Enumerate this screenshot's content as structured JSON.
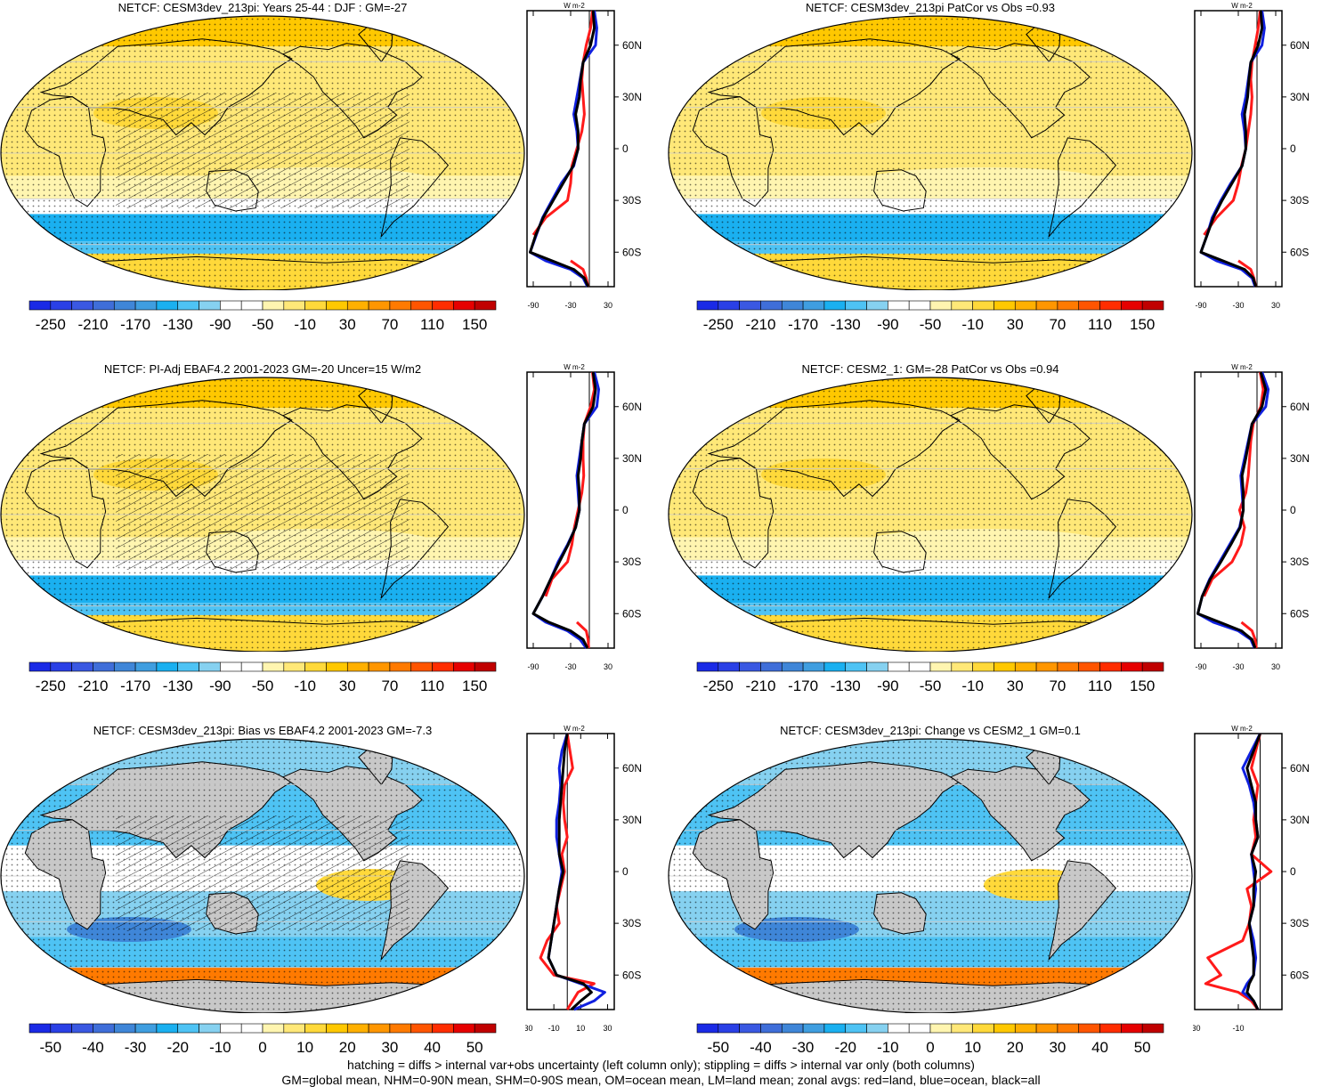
{
  "footnote": {
    "line1": "hatching = diffs > internal var+obs uncertainty (left column only); stippling = diffs > internal var only (both columns)",
    "line2": "GM=global mean, NHM=0-90N mean, SHM=0-90S mean, OM=ocean mean, LM=land mean; zonal avgs: red=land, blue=ocean, black=all"
  },
  "colors": {
    "land": "#ff1a1a",
    "ocean": "#1020e0",
    "all": "#000000",
    "missing": "#c8c8c8",
    "coast": "#000000",
    "cbar_abs": [
      "#1a2ae6",
      "#2a40e6",
      "#3a58e2",
      "#3f6ed9",
      "#3f86d8",
      "#3f9ee0",
      "#1ab0f0",
      "#4ec3f4",
      "#86d1f0",
      "#ffffff",
      "#ffffff",
      "#fff5b0",
      "#ffe878",
      "#ffd93a",
      "#ffc800",
      "#ffb000",
      "#ff9600",
      "#ff7a00",
      "#ff5500",
      "#ff2d00",
      "#e60000",
      "#c00000"
    ],
    "cbar_diff": [
      "#1a2ae6",
      "#2a40e6",
      "#3a58e2",
      "#3f6ed9",
      "#3f86d8",
      "#3f9ee0",
      "#1ab0f0",
      "#4ec3f4",
      "#86d1f0",
      "#ffffff",
      "#ffffff",
      "#fff5b0",
      "#ffe878",
      "#ffd93a",
      "#ffc800",
      "#ffb000",
      "#ff9600",
      "#ff7a00",
      "#ff5500",
      "#ff2d00",
      "#e60000",
      "#c00000"
    ]
  },
  "colorbars": {
    "abs": {
      "labels": [
        "-250",
        "-210",
        "-170",
        "-130",
        "-90",
        "-50",
        "-10",
        "30",
        "70",
        "110",
        "150"
      ]
    },
    "diff": {
      "labels": [
        "-50",
        "-40",
        "-30",
        "-20",
        "-10",
        "0",
        "10",
        "20",
        "30",
        "40",
        "50"
      ]
    }
  },
  "panels": [
    {
      "title": "NETCF: CESM3dev_213pi: Years 25-44 : DJF : GM=-27",
      "map_fill": "abs",
      "hatching": true,
      "zonal": {
        "unit": "W m-2",
        "xlim": [
          -100,
          40
        ],
        "xticks": [
          "-90",
          "-30",
          "30"
        ],
        "yticks": [
          "60N",
          "30N",
          "0",
          "30S",
          "60S"
        ],
        "lat": [
          80,
          70,
          60,
          50,
          40,
          30,
          20,
          10,
          0,
          -10,
          -20,
          -30,
          -40,
          -50,
          -60,
          -65,
          -70,
          -75,
          -80
        ],
        "land": [
          5,
          2,
          -5,
          -10,
          -12,
          -10,
          -8,
          -12,
          -20,
          -28,
          -30,
          -35,
          -70,
          -90,
          null,
          -30,
          -10,
          -5,
          -2
        ],
        "ocean": [
          8,
          12,
          10,
          -10,
          -15,
          -20,
          -25,
          -20,
          -18,
          -25,
          -45,
          -60,
          -75,
          -85,
          -95,
          -70,
          -30,
          -10,
          -3
        ],
        "all": [
          6,
          8,
          2,
          -10,
          -14,
          -16,
          -22,
          -18,
          -18,
          -26,
          -42,
          -58,
          -74,
          -86,
          -95,
          -60,
          -25,
          -8,
          -2
        ]
      }
    },
    {
      "title": "NETCF: CESM3dev_213pi PatCor vs Obs =0.93",
      "map_fill": "abs",
      "hatching": false,
      "zonal": {
        "unit": "W m-2",
        "xlim": [
          -100,
          40
        ],
        "xticks": [
          "-90",
          "-30",
          "30"
        ],
        "yticks": [
          "60N",
          "30N",
          "0",
          "30S",
          "60S"
        ],
        "lat": [
          80,
          70,
          60,
          50,
          40,
          30,
          20,
          10,
          0,
          -10,
          -20,
          -30,
          -40,
          -50,
          -60,
          -65,
          -70,
          -75,
          -80
        ],
        "land": [
          5,
          2,
          -3,
          -8,
          -10,
          -8,
          -10,
          -14,
          -18,
          -25,
          -30,
          -38,
          -65,
          -85,
          null,
          -30,
          -10,
          -5,
          -2
        ],
        "ocean": [
          8,
          12,
          8,
          -10,
          -14,
          -18,
          -24,
          -20,
          -18,
          -24,
          -42,
          -58,
          -72,
          -80,
          -90,
          -65,
          -25,
          -8,
          -3
        ],
        "all": [
          6,
          8,
          2,
          -10,
          -13,
          -15,
          -20,
          -18,
          -18,
          -24,
          -40,
          -56,
          -70,
          -80,
          -90,
          -55,
          -20,
          -6,
          -2
        ]
      }
    },
    {
      "title": "NETCF: PI-Adj EBAF4.2 2001-2023 GM=-20 Uncer=15 W/m2",
      "map_fill": "abs",
      "hatching": true,
      "zonal": {
        "unit": "W m-2",
        "xlim": [
          -100,
          40
        ],
        "xticks": [
          "-90",
          "-30",
          "30"
        ],
        "yticks": [
          "60N",
          "30N",
          "0",
          "30S",
          "60S"
        ],
        "lat": [
          80,
          70,
          60,
          50,
          40,
          30,
          20,
          10,
          0,
          -10,
          -20,
          -30,
          -40,
          -50,
          -60,
          -65,
          -70,
          -75,
          -80
        ],
        "land": [
          5,
          8,
          2,
          -8,
          -10,
          -10,
          -9,
          -12,
          -18,
          -24,
          -28,
          -35,
          -60,
          -70,
          null,
          -20,
          -5,
          -2,
          -1
        ],
        "ocean": [
          8,
          15,
          12,
          -8,
          -12,
          -16,
          -20,
          -18,
          -16,
          -22,
          -35,
          -50,
          -62,
          -75,
          -90,
          -70,
          -35,
          -15,
          -5
        ],
        "all": [
          6,
          10,
          6,
          -8,
          -12,
          -14,
          -18,
          -16,
          -16,
          -22,
          -34,
          -48,
          -62,
          -75,
          -90,
          -65,
          -30,
          -10,
          -3
        ]
      }
    },
    {
      "title": "NETCF: CESM2_1: GM=-28 PatCor vs Obs =0.94",
      "map_fill": "abs",
      "hatching": false,
      "zonal": {
        "unit": "W m-2",
        "xlim": [
          -100,
          40
        ],
        "xticks": [
          "-90",
          "-30",
          "30"
        ],
        "yticks": [
          "60N",
          "30N",
          "0",
          "30S",
          "60S"
        ],
        "lat": [
          80,
          70,
          60,
          50,
          40,
          30,
          20,
          10,
          0,
          -10,
          -20,
          -30,
          -40,
          -50,
          -60,
          -65,
          -70,
          -75,
          -80
        ],
        "land": [
          5,
          10,
          6,
          -6,
          -10,
          -12,
          -14,
          -18,
          -28,
          -20,
          -26,
          -40,
          -72,
          -85,
          null,
          -25,
          -8,
          -3,
          -1
        ],
        "ocean": [
          8,
          18,
          14,
          -8,
          -14,
          -20,
          -26,
          -24,
          -22,
          -28,
          -44,
          -60,
          -76,
          -88,
          -95,
          -70,
          -30,
          -10,
          -4
        ],
        "all": [
          6,
          14,
          8,
          -8,
          -13,
          -18,
          -24,
          -22,
          -22,
          -27,
          -42,
          -58,
          -75,
          -88,
          -95,
          -60,
          -25,
          -8,
          -3
        ]
      }
    },
    {
      "title": "NETCF: CESM3dev_213pi: Bias vs EBAF4.2 2001-2023 GM=-7.3",
      "map_fill": "diff",
      "hatching": true,
      "zonal": {
        "unit": "W m-2",
        "xlim": [
          -30,
          35
        ],
        "xticks": [
          "-30",
          "-10",
          "10",
          "30"
        ],
        "yticks": [
          "60N",
          "30N",
          "0",
          "30S",
          "60S"
        ],
        "lat": [
          80,
          70,
          60,
          50,
          40,
          30,
          20,
          10,
          0,
          -10,
          -20,
          -30,
          -40,
          -50,
          -60,
          -65,
          -70,
          -75,
          -80
        ],
        "land": [
          0,
          2,
          4,
          -2,
          -3,
          -2,
          0,
          -4,
          -2,
          -5,
          -8,
          -6,
          -15,
          -20,
          -10,
          20,
          8,
          4,
          0
        ],
        "ocean": [
          0,
          -4,
          -6,
          -5,
          -6,
          -8,
          -8,
          -6,
          -4,
          -6,
          -8,
          -10,
          -12,
          -14,
          -8,
          10,
          28,
          20,
          5
        ],
        "all": [
          0,
          -2,
          -3,
          -4,
          -5,
          -6,
          -6,
          -6,
          -3,
          -6,
          -8,
          -10,
          -12,
          -14,
          -8,
          12,
          18,
          10,
          3
        ]
      }
    },
    {
      "title": "NETCF: CESM3dev_213pi: Change vs CESM2_1 GM=0.1",
      "map_fill": "diff",
      "hatching": false,
      "zonal": {
        "unit": "W m-2",
        "xlim": [
          -30,
          10
        ],
        "xticks": [
          "-30",
          "-10"
        ],
        "yticks": [
          "60N",
          "30N",
          "0",
          "30S",
          "60S"
        ],
        "lat": [
          80,
          70,
          60,
          50,
          40,
          30,
          20,
          10,
          0,
          -10,
          -20,
          -30,
          -40,
          -50,
          -60,
          -65,
          -70,
          -75,
          -80
        ],
        "land": [
          0,
          -2,
          -4,
          -1,
          -2,
          -3,
          -2,
          -4,
          5,
          -6,
          -4,
          -5,
          -8,
          -24,
          -18,
          -25,
          -10,
          -4,
          -1
        ],
        "ocean": [
          0,
          -4,
          -8,
          -5,
          -3,
          -2,
          -1,
          -4,
          -3,
          -2,
          -3,
          -5,
          -3,
          -2,
          -3,
          -6,
          -8,
          -3,
          -1
        ],
        "all": [
          0,
          -3,
          -6,
          -4,
          -2,
          -2,
          -1,
          -4,
          -2,
          -3,
          -3,
          -5,
          -4,
          -3,
          -3,
          -5,
          -6,
          -3,
          -1
        ]
      }
    }
  ]
}
